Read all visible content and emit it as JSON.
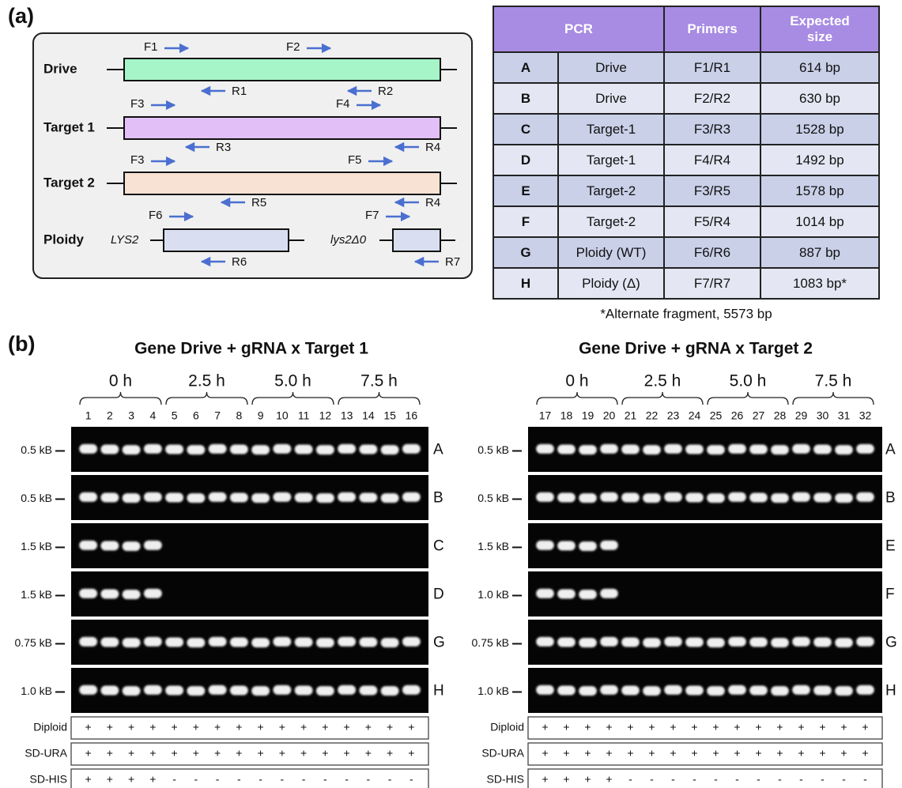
{
  "panel_a": {
    "label": "(a)",
    "diagram": {
      "rows": [
        "Drive",
        "Target 1",
        "Target 2",
        "Ploidy"
      ],
      "alleles": [
        "LYS2",
        "lys2Δ0"
      ],
      "primers": [
        "F1",
        "F2",
        "R1",
        "R2",
        "F3",
        "F4",
        "R3",
        "R4",
        "F3",
        "F5",
        "R5",
        "R4",
        "F6",
        "F7",
        "R6",
        "R7"
      ]
    },
    "table": {
      "header": [
        "PCR",
        "Primers",
        "Expected size"
      ],
      "rows": [
        [
          "A",
          "Drive",
          "F1/R1",
          "614 bp"
        ],
        [
          "B",
          "Drive",
          "F2/R2",
          "630 bp"
        ],
        [
          "C",
          "Target-1",
          "F3/R3",
          "1528 bp"
        ],
        [
          "D",
          "Target-1",
          "F4/R4",
          "1492 bp"
        ],
        [
          "E",
          "Target-2",
          "F3/R5",
          "1578 bp"
        ],
        [
          "F",
          "Target-2",
          "F5/R4",
          "1014 bp"
        ],
        [
          "G",
          "Ploidy (WT)",
          "F6/R6",
          "887 bp"
        ],
        [
          "H",
          "Ploidy (Δ)",
          "F7/R7",
          "1083 bp*"
        ]
      ],
      "footnote": "*Alternate fragment, 5573 bp"
    }
  },
  "panel_b": {
    "label": "(b)",
    "gels": [
      {
        "title": "Gene Drive + gRNA x Target 1",
        "time_points": [
          "0 h",
          "2.5 h",
          "5.0 h",
          "7.5 h"
        ],
        "lanes": [
          "1",
          "2",
          "3",
          "4",
          "5",
          "6",
          "7",
          "8",
          "9",
          "10",
          "11",
          "12",
          "13",
          "14",
          "15",
          "16"
        ],
        "rows": [
          {
            "marker": "0.5 kB",
            "label": "A"
          },
          {
            "marker": "0.5 kB",
            "label": "B"
          },
          {
            "marker": "1.5 kB",
            "label": "C"
          },
          {
            "marker": "1.5 kB",
            "label": "D"
          },
          {
            "marker": "0.75 kB",
            "label": "G"
          },
          {
            "marker": "1.0 kB",
            "label": "H"
          }
        ],
        "conditions": [
          {
            "name": "Diploid",
            "marks": [
              "+",
              "+",
              "+",
              "+",
              "+",
              "+",
              "+",
              "+",
              "+",
              "+",
              "+",
              "+",
              "+",
              "+",
              "+",
              "+"
            ]
          },
          {
            "name": "SD-URA",
            "marks": [
              "+",
              "+",
              "+",
              "+",
              "+",
              "+",
              "+",
              "+",
              "+",
              "+",
              "+",
              "+",
              "+",
              "+",
              "+",
              "+"
            ]
          },
          {
            "name": "SD-HIS",
            "marks": [
              "+",
              "+",
              "+",
              "+",
              "-",
              "-",
              "-",
              "-",
              "-",
              "-",
              "-",
              "-",
              "-",
              "-",
              "-",
              "-"
            ]
          }
        ]
      },
      {
        "title": "Gene Drive + gRNA x Target 2",
        "time_points": [
          "0 h",
          "2.5 h",
          "5.0 h",
          "7.5 h"
        ],
        "lanes": [
          "17",
          "18",
          "19",
          "20",
          "21",
          "22",
          "23",
          "24",
          "25",
          "26",
          "27",
          "28",
          "29",
          "30",
          "31",
          "32"
        ],
        "rows": [
          {
            "marker": "0.5 kB",
            "label": "A"
          },
          {
            "marker": "0.5 kB",
            "label": "B"
          },
          {
            "marker": "1.5 kB",
            "label": "E"
          },
          {
            "marker": "1.0 kB",
            "label": "F"
          },
          {
            "marker": "0.75 kB",
            "label": "G"
          },
          {
            "marker": "1.0 kB",
            "label": "H"
          }
        ],
        "conditions": [
          {
            "name": "Diploid",
            "marks": [
              "+",
              "+",
              "+",
              "+",
              "+",
              "+",
              "+",
              "+",
              "+",
              "+",
              "+",
              "+",
              "+",
              "+",
              "+",
              "+"
            ]
          },
          {
            "name": "SD-URA",
            "marks": [
              "+",
              "+",
              "+",
              "+",
              "+",
              "+",
              "+",
              "+",
              "+",
              "+",
              "+",
              "+",
              "+",
              "+",
              "+",
              "+"
            ]
          },
          {
            "name": "SD-HIS",
            "marks": [
              "+",
              "+",
              "+",
              "+",
              "-",
              "-",
              "-",
              "-",
              "-",
              "-",
              "-",
              "-",
              "-",
              "-",
              "-",
              "-"
            ]
          }
        ]
      }
    ]
  }
}
